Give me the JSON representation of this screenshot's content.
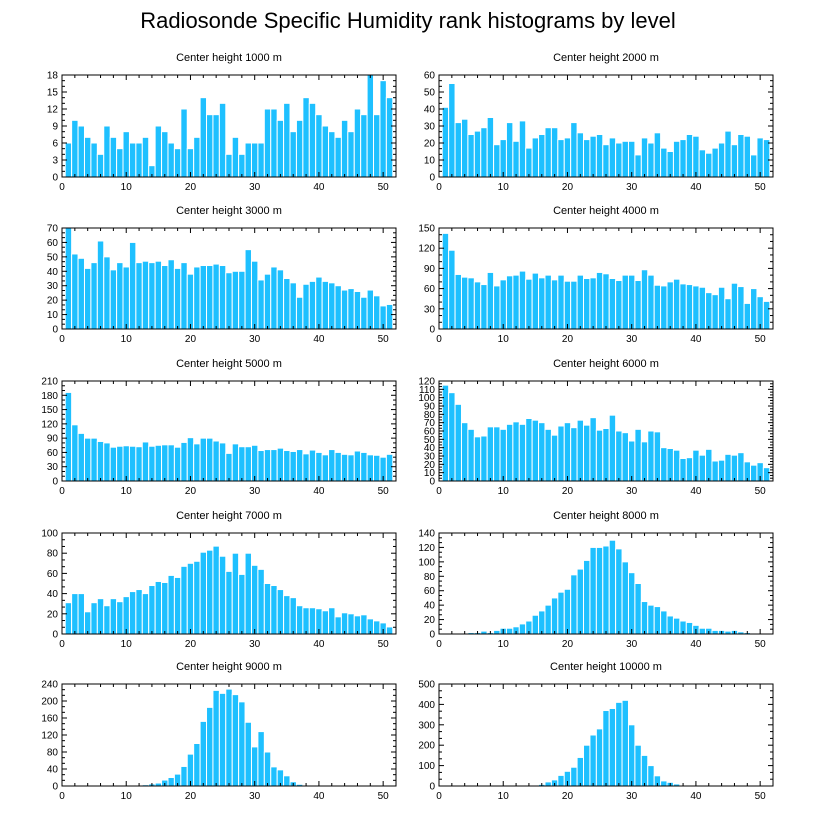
{
  "figure": {
    "title": "Radiosonde Specific Humidity rank histograms by level"
  },
  "colors": {
    "bar": "#1ec0ff",
    "bar_edge": "#ffffff",
    "axis": "#000000"
  },
  "chart_data": [
    {
      "type": "bar",
      "title": "Center height 1000 m",
      "xlim": [
        0,
        52
      ],
      "ylim": [
        0,
        18
      ],
      "xticks": [
        0,
        10,
        20,
        30,
        40,
        50
      ],
      "yticks": [
        0,
        3,
        6,
        9,
        12,
        15,
        18
      ],
      "categories": [
        1,
        2,
        3,
        4,
        5,
        6,
        7,
        8,
        9,
        10,
        11,
        12,
        13,
        14,
        15,
        16,
        17,
        18,
        19,
        20,
        21,
        22,
        23,
        24,
        25,
        26,
        27,
        28,
        29,
        30,
        31,
        32,
        33,
        34,
        35,
        36,
        37,
        38,
        39,
        40,
        41,
        42,
        43,
        44,
        45,
        46,
        47,
        48,
        49,
        50,
        51
      ],
      "values": [
        6,
        10,
        9,
        7,
        6,
        4,
        9,
        7,
        5,
        8,
        6,
        6,
        7,
        2,
        9,
        8,
        6,
        5,
        12,
        5,
        7,
        14,
        11,
        11,
        13,
        4,
        7,
        4,
        6,
        6,
        6,
        12,
        12,
        10,
        13,
        8,
        10,
        14,
        13,
        11,
        9,
        8,
        7,
        10,
        8,
        12,
        11,
        18,
        11,
        17,
        14
      ]
    },
    {
      "type": "bar",
      "title": "Center height 2000 m",
      "xlim": [
        0,
        52
      ],
      "ylim": [
        0,
        60
      ],
      "xticks": [
        0,
        10,
        20,
        30,
        40,
        50
      ],
      "yticks": [
        0,
        10,
        20,
        30,
        40,
        50,
        60
      ],
      "categories": [
        1,
        2,
        3,
        4,
        5,
        6,
        7,
        8,
        9,
        10,
        11,
        12,
        13,
        14,
        15,
        16,
        17,
        18,
        19,
        20,
        21,
        22,
        23,
        24,
        25,
        26,
        27,
        28,
        29,
        30,
        31,
        32,
        33,
        34,
        35,
        36,
        37,
        38,
        39,
        40,
        41,
        42,
        43,
        44,
        45,
        46,
        47,
        48,
        49,
        50,
        51
      ],
      "values": [
        41,
        55,
        32,
        34,
        25,
        27,
        29,
        35,
        19,
        22,
        32,
        21,
        33,
        17,
        23,
        25,
        29,
        29,
        22,
        23,
        32,
        26,
        22,
        24,
        25,
        19,
        23,
        20,
        21,
        21,
        13,
        23,
        20,
        26,
        17,
        15,
        21,
        22,
        25,
        24,
        16,
        14,
        17,
        20,
        27,
        19,
        25,
        24,
        13,
        23,
        22
      ]
    },
    {
      "type": "bar",
      "title": "Center height 3000 m",
      "xlim": [
        0,
        52
      ],
      "ylim": [
        0,
        70
      ],
      "xticks": [
        0,
        10,
        20,
        30,
        40,
        50
      ],
      "yticks": [
        0,
        10,
        20,
        30,
        40,
        50,
        60,
        70
      ],
      "categories": [
        1,
        2,
        3,
        4,
        5,
        6,
        7,
        8,
        9,
        10,
        11,
        12,
        13,
        14,
        15,
        16,
        17,
        18,
        19,
        20,
        21,
        22,
        23,
        24,
        25,
        26,
        27,
        28,
        29,
        30,
        31,
        32,
        33,
        34,
        35,
        36,
        37,
        38,
        39,
        40,
        41,
        42,
        43,
        44,
        45,
        46,
        47,
        48,
        49,
        50,
        51
      ],
      "values": [
        70,
        52,
        49,
        42,
        46,
        61,
        50,
        41,
        46,
        43,
        60,
        46,
        47,
        46,
        47,
        44,
        48,
        42,
        46,
        38,
        43,
        44,
        44,
        45,
        44,
        39,
        40,
        40,
        55,
        47,
        34,
        38,
        43,
        41,
        35,
        32,
        22,
        31,
        33,
        36,
        33,
        32,
        30,
        27,
        28,
        26,
        22,
        27,
        23,
        16,
        17
      ]
    },
    {
      "type": "bar",
      "title": "Center height 4000 m",
      "xlim": [
        0,
        52
      ],
      "ylim": [
        0,
        150
      ],
      "xticks": [
        0,
        10,
        20,
        30,
        40,
        50
      ],
      "yticks": [
        0,
        30,
        60,
        90,
        120,
        150
      ],
      "categories": [
        1,
        2,
        3,
        4,
        5,
        6,
        7,
        8,
        9,
        10,
        11,
        12,
        13,
        14,
        15,
        16,
        17,
        18,
        19,
        20,
        21,
        22,
        23,
        24,
        25,
        26,
        27,
        28,
        29,
        30,
        31,
        32,
        33,
        34,
        35,
        36,
        37,
        38,
        39,
        40,
        41,
        42,
        43,
        44,
        45,
        46,
        47,
        48,
        49,
        50,
        51
      ],
      "values": [
        142,
        117,
        81,
        77,
        76,
        70,
        66,
        84,
        64,
        73,
        79,
        80,
        86,
        74,
        83,
        76,
        80,
        73,
        80,
        71,
        71,
        80,
        75,
        76,
        84,
        82,
        75,
        72,
        80,
        80,
        72,
        88,
        80,
        65,
        64,
        70,
        74,
        67,
        66,
        64,
        62,
        54,
        51,
        62,
        45,
        68,
        63,
        38,
        60,
        48,
        41
      ]
    },
    {
      "type": "bar",
      "title": "Center height 5000 m",
      "xlim": [
        0,
        52
      ],
      "ylim": [
        0,
        210
      ],
      "xticks": [
        0,
        10,
        20,
        30,
        40,
        50
      ],
      "yticks": [
        0,
        30,
        60,
        90,
        120,
        150,
        180,
        210
      ],
      "categories": [
        1,
        2,
        3,
        4,
        5,
        6,
        7,
        8,
        9,
        10,
        11,
        12,
        13,
        14,
        15,
        16,
        17,
        18,
        19,
        20,
        21,
        22,
        23,
        24,
        25,
        26,
        27,
        28,
        29,
        30,
        31,
        32,
        33,
        34,
        35,
        36,
        37,
        38,
        39,
        40,
        41,
        42,
        43,
        44,
        45,
        46,
        47,
        48,
        49,
        50,
        51
      ],
      "values": [
        186,
        118,
        100,
        90,
        90,
        83,
        80,
        71,
        73,
        74,
        73,
        72,
        82,
        73,
        75,
        76,
        76,
        71,
        81,
        91,
        78,
        90,
        90,
        84,
        80,
        58,
        78,
        72,
        72,
        75,
        64,
        66,
        66,
        69,
        64,
        62,
        66,
        57,
        65,
        60,
        55,
        66,
        60,
        56,
        55,
        63,
        60,
        55,
        54,
        50,
        56
      ]
    },
    {
      "type": "bar",
      "title": "Center height 6000 m",
      "xlim": [
        0,
        52
      ],
      "ylim": [
        0,
        120
      ],
      "xticks": [
        0,
        10,
        20,
        30,
        40,
        50
      ],
      "yticks": [
        0,
        10,
        20,
        30,
        40,
        50,
        60,
        70,
        80,
        90,
        100,
        110,
        120
      ],
      "categories": [
        1,
        2,
        3,
        4,
        5,
        6,
        7,
        8,
        9,
        10,
        11,
        12,
        13,
        14,
        15,
        16,
        17,
        18,
        19,
        20,
        21,
        22,
        23,
        24,
        25,
        26,
        27,
        28,
        29,
        30,
        31,
        32,
        33,
        34,
        35,
        36,
        37,
        38,
        39,
        40,
        41,
        42,
        43,
        44,
        45,
        46,
        47,
        48,
        49,
        50,
        51
      ],
      "values": [
        115,
        106,
        92,
        70,
        62,
        53,
        54,
        65,
        65,
        62,
        68,
        71,
        68,
        75,
        73,
        70,
        62,
        55,
        66,
        70,
        64,
        73,
        67,
        76,
        61,
        63,
        79,
        60,
        58,
        48,
        62,
        47,
        60,
        59,
        40,
        39,
        37,
        27,
        28,
        37,
        31,
        38,
        24,
        25,
        32,
        31,
        34,
        23,
        19,
        22,
        16
      ]
    },
    {
      "type": "bar",
      "title": "Center height 7000 m",
      "xlim": [
        0,
        52
      ],
      "ylim": [
        0,
        100
      ],
      "xticks": [
        0,
        10,
        20,
        30,
        40,
        50
      ],
      "yticks": [
        0,
        20,
        40,
        60,
        80,
        100
      ],
      "categories": [
        1,
        2,
        3,
        4,
        5,
        6,
        7,
        8,
        9,
        10,
        11,
        12,
        13,
        14,
        15,
        16,
        17,
        18,
        19,
        20,
        21,
        22,
        23,
        24,
        25,
        26,
        27,
        28,
        29,
        30,
        31,
        32,
        33,
        34,
        35,
        36,
        37,
        38,
        39,
        40,
        41,
        42,
        43,
        44,
        45,
        46,
        47,
        48,
        49,
        50,
        51
      ],
      "values": [
        31,
        40,
        40,
        22,
        31,
        35,
        28,
        35,
        32,
        37,
        42,
        44,
        40,
        48,
        52,
        51,
        58,
        56,
        67,
        70,
        72,
        81,
        83,
        87,
        77,
        62,
        80,
        59,
        80,
        68,
        64,
        50,
        48,
        44,
        38,
        36,
        28,
        26,
        26,
        25,
        23,
        26,
        17,
        21,
        20,
        18,
        19,
        15,
        13,
        11,
        7
      ]
    },
    {
      "type": "bar",
      "title": "Center height 8000 m",
      "xlim": [
        0,
        52
      ],
      "ylim": [
        0,
        140
      ],
      "xticks": [
        0,
        10,
        20,
        30,
        40,
        50
      ],
      "yticks": [
        0,
        20,
        40,
        60,
        80,
        100,
        120,
        140
      ],
      "categories": [
        1,
        2,
        3,
        4,
        5,
        6,
        7,
        8,
        9,
        10,
        11,
        12,
        13,
        14,
        15,
        16,
        17,
        18,
        19,
        20,
        21,
        22,
        23,
        24,
        25,
        26,
        27,
        28,
        29,
        30,
        31,
        32,
        33,
        34,
        35,
        36,
        37,
        38,
        39,
        40,
        41,
        42,
        43,
        44,
        45,
        46,
        47,
        48,
        49,
        50,
        51
      ],
      "values": [
        1,
        1,
        1,
        1,
        2,
        2,
        4,
        2,
        5,
        8,
        8,
        10,
        14,
        18,
        26,
        32,
        40,
        50,
        58,
        62,
        82,
        90,
        102,
        120,
        120,
        122,
        130,
        118,
        100,
        85,
        70,
        45,
        40,
        38,
        32,
        25,
        22,
        18,
        16,
        12,
        8,
        8,
        5,
        5,
        4,
        5,
        3,
        2,
        1,
        1,
        0
      ]
    },
    {
      "type": "bar",
      "title": "Center height 9000 m",
      "xlim": [
        0,
        52
      ],
      "ylim": [
        0,
        240
      ],
      "xticks": [
        0,
        10,
        20,
        30,
        40,
        50
      ],
      "yticks": [
        0,
        40,
        80,
        120,
        160,
        200,
        240
      ],
      "categories": [
        1,
        2,
        3,
        4,
        5,
        6,
        7,
        8,
        9,
        10,
        11,
        12,
        13,
        14,
        15,
        16,
        17,
        18,
        19,
        20,
        21,
        22,
        23,
        24,
        25,
        26,
        27,
        28,
        29,
        30,
        31,
        32,
        33,
        34,
        35,
        36,
        37,
        38,
        39,
        40,
        41,
        42,
        43,
        44,
        45,
        46,
        47,
        48,
        49,
        50,
        51
      ],
      "values": [
        0,
        0,
        0,
        0,
        0,
        0,
        0,
        0,
        0,
        0,
        0,
        1,
        3,
        5,
        7,
        14,
        20,
        28,
        46,
        75,
        100,
        152,
        185,
        225,
        218,
        228,
        215,
        198,
        150,
        92,
        128,
        80,
        45,
        38,
        24,
        10,
        4,
        1,
        1,
        0,
        0,
        0,
        0,
        0,
        0,
        0,
        0,
        0,
        0,
        0,
        0
      ]
    },
    {
      "type": "bar",
      "title": "Center height 10000 m",
      "xlim": [
        0,
        52
      ],
      "ylim": [
        0,
        500
      ],
      "xticks": [
        0,
        10,
        20,
        30,
        40,
        50
      ],
      "yticks": [
        0,
        100,
        200,
        300,
        400,
        500
      ],
      "categories": [
        1,
        2,
        3,
        4,
        5,
        6,
        7,
        8,
        9,
        10,
        11,
        12,
        13,
        14,
        15,
        16,
        17,
        18,
        19,
        20,
        21,
        22,
        23,
        24,
        25,
        26,
        27,
        28,
        29,
        30,
        31,
        32,
        33,
        34,
        35,
        36,
        37,
        38,
        39,
        40,
        41,
        42,
        43,
        44,
        45,
        46,
        47,
        48,
        49,
        50,
        51
      ],
      "values": [
        0,
        0,
        0,
        0,
        0,
        0,
        0,
        0,
        0,
        0,
        0,
        0,
        0,
        0,
        2,
        8,
        20,
        30,
        52,
        72,
        92,
        140,
        200,
        250,
        280,
        370,
        380,
        410,
        420,
        300,
        200,
        150,
        100,
        50,
        25,
        18,
        10,
        4,
        2,
        1,
        0,
        0,
        0,
        0,
        0,
        0,
        0,
        0,
        0,
        0,
        0
      ]
    }
  ]
}
